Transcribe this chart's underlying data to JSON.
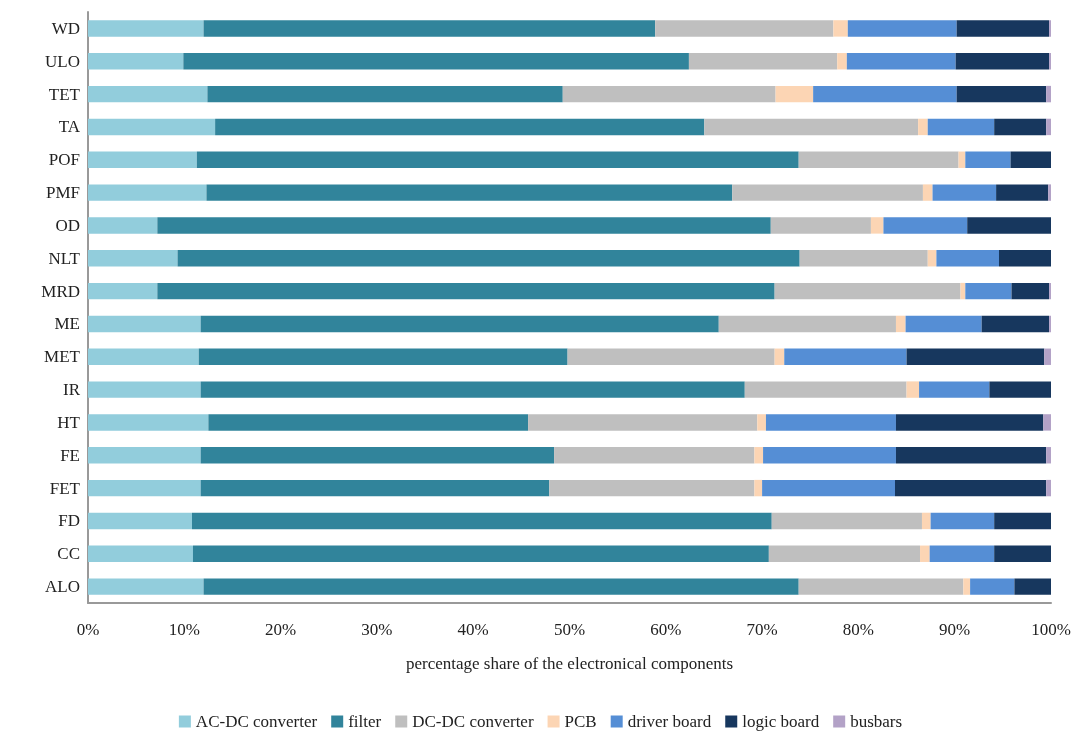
{
  "chart_data": {
    "type": "bar",
    "orientation": "horizontal",
    "stacked": true,
    "xlabel": "percentage share of the electronical components",
    "categories": [
      "WD",
      "ULO",
      "TET",
      "TA",
      "POF",
      "PMF",
      "OD",
      "NLT",
      "MRD",
      "ME",
      "MET",
      "IR",
      "HT",
      "FE",
      "FET",
      "FD",
      "CC",
      "ALO"
    ],
    "series": [
      {
        "name": "AC-DC converter",
        "color": "#92cddc",
        "values": [
          12.0,
          9.9,
          12.4,
          13.2,
          11.3,
          12.3,
          7.2,
          9.3,
          7.2,
          11.7,
          11.5,
          11.7,
          12.5,
          11.7,
          11.7,
          10.8,
          10.9,
          12.0
        ]
      },
      {
        "name": "filter",
        "color": "#31849b",
        "values": [
          46.9,
          52.5,
          36.9,
          50.8,
          62.5,
          54.6,
          63.7,
          64.6,
          64.1,
          53.8,
          38.3,
          56.5,
          33.2,
          36.7,
          36.2,
          60.2,
          59.8,
          61.8
        ]
      },
      {
        "name": "DC-DC converter",
        "color": "#bfbfbf",
        "values": [
          18.5,
          15.4,
          22.1,
          22.2,
          16.6,
          19.8,
          10.4,
          13.3,
          19.3,
          18.4,
          21.5,
          16.8,
          23.8,
          20.8,
          21.3,
          15.6,
          15.7,
          17.1
        ]
      },
      {
        "name": "PCB",
        "color": "#fcd5b4",
        "values": [
          1.5,
          1.0,
          3.9,
          1.0,
          0.7,
          1.0,
          1.3,
          0.9,
          0.5,
          1.0,
          1.0,
          1.3,
          0.9,
          0.9,
          0.8,
          0.9,
          1.0,
          0.7
        ]
      },
      {
        "name": "driver board",
        "color": "#558ed5",
        "values": [
          11.3,
          11.3,
          14.9,
          6.9,
          4.7,
          6.6,
          8.7,
          6.5,
          4.8,
          7.9,
          12.7,
          7.3,
          13.5,
          13.8,
          13.8,
          6.6,
          6.7,
          4.6
        ]
      },
      {
        "name": "logic board",
        "color": "#17375e",
        "values": [
          9.6,
          9.7,
          9.3,
          5.4,
          4.2,
          5.4,
          8.7,
          5.4,
          3.9,
          7.0,
          14.3,
          6.4,
          15.3,
          15.6,
          15.7,
          5.9,
          5.9,
          3.8
        ]
      },
      {
        "name": "busbars",
        "color": "#b3a2c7",
        "values": [
          0.2,
          0.2,
          0.5,
          0.5,
          0,
          0.3,
          0,
          0,
          0.2,
          0.2,
          0.7,
          0,
          0.8,
          0.5,
          0.5,
          0,
          0,
          0
        ]
      }
    ],
    "xlim": [
      0,
      100
    ],
    "xticks": [
      {
        "value": 0,
        "label": "0%"
      },
      {
        "value": 10,
        "label": "10%"
      },
      {
        "value": 20,
        "label": "20%"
      },
      {
        "value": 30,
        "label": "30%"
      },
      {
        "value": 40,
        "label": "40%"
      },
      {
        "value": 50,
        "label": "50%"
      },
      {
        "value": 60,
        "label": "60%"
      },
      {
        "value": 70,
        "label": "70%"
      },
      {
        "value": 80,
        "label": "80%"
      },
      {
        "value": 90,
        "label": "90%"
      },
      {
        "value": 100,
        "label": "100%"
      }
    ],
    "grid": false,
    "legend": "bottom"
  }
}
